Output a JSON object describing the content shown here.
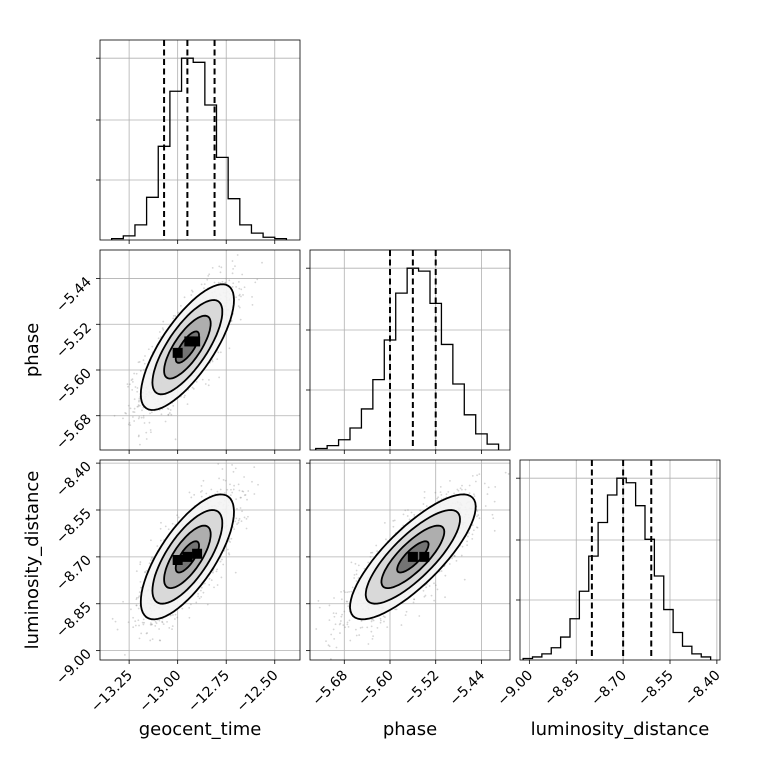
{
  "chart_data": {
    "type": "corner",
    "parameters": [
      "geocent_time",
      "phase",
      "luminosity_distance"
    ],
    "grid": true,
    "x_tick_labels": [
      [
        "−13.25",
        "−13.00",
        "−12.75",
        "−12.50"
      ],
      [
        "−5.68",
        "−5.60",
        "−5.52",
        "−5.44"
      ],
      [
        "−9.00",
        "−8.85",
        "−8.70",
        "−8.55",
        "−8.40"
      ]
    ],
    "y_tick_labels": {
      "phase": [
        "−5.44",
        "−5.52",
        "−5.60",
        "−5.68"
      ],
      "luminosity_distance": [
        "−8.40",
        "−8.55",
        "−8.70",
        "−8.85",
        "−9.00"
      ]
    },
    "axis_ranges": {
      "geocent_time": [
        -13.4,
        -12.37
      ],
      "phase": [
        -5.74,
        -5.39
      ],
      "luminosity_distance": [
        -9.03,
        -8.39
      ]
    },
    "ticks": {
      "geocent_time": [
        -13.25,
        -13.0,
        -12.75,
        -12.5
      ],
      "phase": [
        -5.68,
        -5.6,
        -5.52,
        -5.44
      ],
      "luminosity_distance": [
        -9.0,
        -8.85,
        -8.7,
        -8.55,
        -8.4
      ]
    },
    "marginals": [
      {
        "parameter": "geocent_time",
        "bin_edges": [
          -13.34,
          -13.28,
          -13.22,
          -13.16,
          -13.1,
          -13.04,
          -12.98,
          -12.92,
          -12.86,
          -12.8,
          -12.74,
          -12.68,
          -12.62,
          -12.56,
          -12.5,
          -12.44
        ],
        "counts": [
          1,
          3,
          11,
          31,
          68,
          108,
          132,
          129,
          98,
          60,
          30,
          11,
          5,
          2,
          1
        ],
        "quantiles": [
          -13.07,
          -12.95,
          -12.81
        ]
      },
      {
        "parameter": "phase",
        "bin_edges": [
          -5.73,
          -5.71,
          -5.69,
          -5.67,
          -5.65,
          -5.63,
          -5.61,
          -5.59,
          -5.57,
          -5.55,
          -5.53,
          -5.51,
          -5.49,
          -5.47,
          -5.45,
          -5.43,
          -5.41
        ],
        "counts": [
          1,
          3,
          7,
          15,
          28,
          48,
          75,
          107,
          124,
          122,
          100,
          72,
          45,
          24,
          11,
          4
        ],
        "quantiles": [
          -5.6,
          -5.56,
          -5.52
        ]
      },
      {
        "parameter": "luminosity_distance",
        "bin_edges": [
          -9.02,
          -8.99,
          -8.96,
          -8.93,
          -8.9,
          -8.87,
          -8.84,
          -8.81,
          -8.78,
          -8.75,
          -8.72,
          -8.69,
          -8.66,
          -8.63,
          -8.6,
          -8.57,
          -8.54,
          -8.51,
          -8.48,
          -8.45,
          -8.42
        ],
        "counts": [
          1,
          2,
          4,
          8,
          15,
          27,
          45,
          68,
          90,
          108,
          119,
          116,
          101,
          79,
          55,
          33,
          18,
          9,
          4,
          2
        ],
        "quantiles": [
          -8.8,
          -8.7,
          -8.61
        ]
      }
    ],
    "joint": [
      {
        "x": "geocent_time",
        "y": "phase",
        "mean": [
          -12.95,
          -5.56
        ],
        "std": [
          0.12,
          0.055
        ],
        "rho": 0.75,
        "peak_bins": [
          [
            -13.0,
            -5.57
          ],
          [
            -12.94,
            -5.55
          ],
          [
            -12.91,
            -5.55
          ]
        ]
      },
      {
        "x": "geocent_time",
        "y": "luminosity_distance",
        "mean": [
          -12.95,
          -8.7
        ],
        "std": [
          0.12,
          0.1
        ],
        "rho": 0.72,
        "peak_bins": [
          [
            -13.0,
            -8.71
          ],
          [
            -12.95,
            -8.7
          ],
          [
            -12.9,
            -8.69
          ]
        ]
      },
      {
        "x": "phase",
        "y": "luminosity_distance",
        "mean": [
          -5.56,
          -8.7
        ],
        "std": [
          0.055,
          0.1
        ],
        "rho": 0.8,
        "peak_bins": [
          [
            -5.56,
            -8.7
          ],
          [
            -5.54,
            -8.7
          ]
        ]
      }
    ],
    "contour_levels_sigma": [
      0.5,
      1.0,
      1.5,
      2.0
    ],
    "point_color": "#888888",
    "line_color": "#000000"
  }
}
